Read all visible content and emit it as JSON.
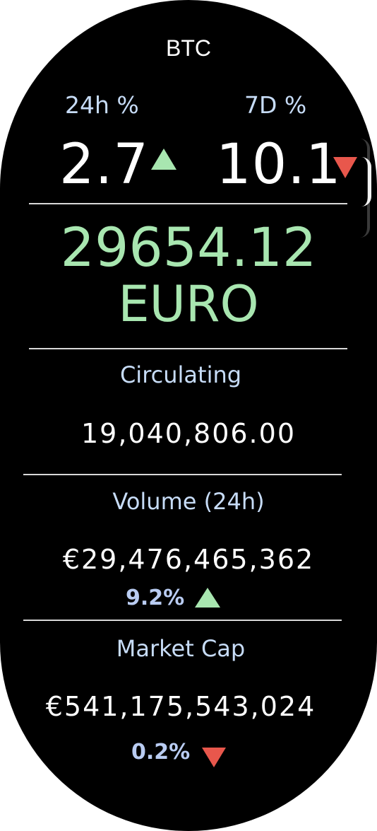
{
  "header": {
    "symbol": "BTC"
  },
  "changes": {
    "day": {
      "label": "24h %",
      "value": "2.7",
      "direction": "up",
      "icon": "triangle-up-icon"
    },
    "week": {
      "label": "7D %",
      "value": "10.1",
      "direction": "down",
      "icon": "triangle-down-icon"
    }
  },
  "price": {
    "value": "29654.12",
    "currency": "EURO"
  },
  "circulating": {
    "label": "Circulating",
    "value": "19,040,806.00"
  },
  "volume": {
    "label": "Volume (24h)",
    "value": "€29,476,465,362",
    "change": "9.2%",
    "direction": "up",
    "icon": "triangle-up-icon"
  },
  "market_cap": {
    "label": "Market Cap",
    "value": "€541,175,543,024",
    "change": "0.2%",
    "direction": "down",
    "icon": "triangle-down-icon"
  },
  "colors": {
    "background": "#000000",
    "positive": "#a8e6b0",
    "negative": "#e8574c",
    "label": "#c7dcf7",
    "text": "#ffffff"
  }
}
